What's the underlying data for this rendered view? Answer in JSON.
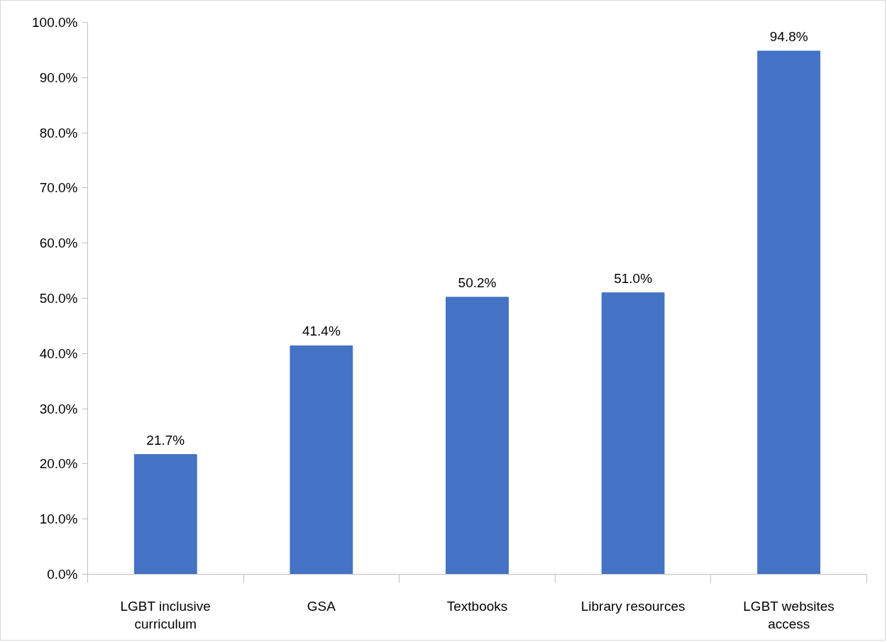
{
  "chart_data": {
    "type": "bar",
    "categories": [
      "LGBT inclusive curriculum",
      "GSA",
      "Textbooks",
      "Library resources",
      "LGBT websites access"
    ],
    "values": [
      21.7,
      41.4,
      50.2,
      51.0,
      94.8
    ],
    "value_labels": [
      "21.7%",
      "41.4%",
      "50.2%",
      "51.0%",
      "94.8%"
    ],
    "color": "#4472c4",
    "ylim": [
      0,
      100
    ],
    "yticks": [
      {
        "value": 0,
        "label": "0.0%"
      },
      {
        "value": 10,
        "label": "10.0%"
      },
      {
        "value": 20,
        "label": "20.0%"
      },
      {
        "value": 30,
        "label": "30.0%"
      },
      {
        "value": 40,
        "label": "40.0%"
      },
      {
        "value": 50,
        "label": "50.0%"
      },
      {
        "value": 60,
        "label": "60.0%"
      },
      {
        "value": 70,
        "label": "70.0%"
      },
      {
        "value": 80,
        "label": "80.0%"
      },
      {
        "value": 90,
        "label": "90.0%"
      },
      {
        "value": 100,
        "label": "100.0%"
      }
    ],
    "grid": false
  }
}
